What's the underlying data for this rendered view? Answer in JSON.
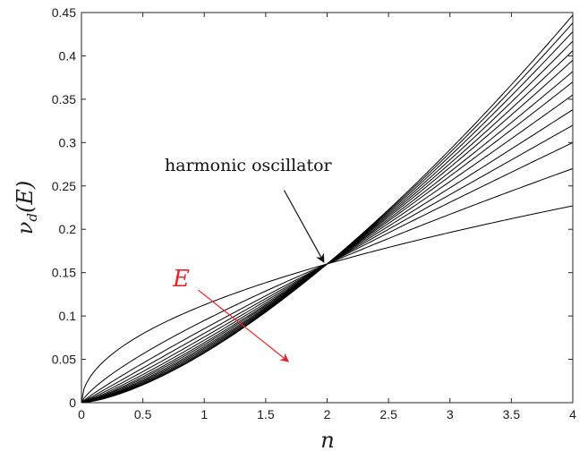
{
  "chart_data": {
    "type": "line",
    "title": "",
    "xlabel": "n",
    "ylabel": "ν_d(E)",
    "ylabel_main": "ν",
    "ylabel_sub": "d",
    "ylabel_tail": "(E)",
    "xlim": [
      0,
      4
    ],
    "ylim": [
      0,
      0.45
    ],
    "x_ticks": [
      "0",
      "0.5",
      "1",
      "1.5",
      "2",
      "2.5",
      "3",
      "3.5",
      "4"
    ],
    "y_ticks": [
      "0",
      "0.05",
      "0.1",
      "0.15",
      "0.2",
      "0.25",
      "0.3",
      "0.35",
      "0.4",
      "0.45"
    ],
    "grid": false,
    "line_color": "#000000",
    "crossing_point": [
      2,
      0.16
    ],
    "curves_right_end_y": [
      0.227,
      0.27,
      0.3,
      0.32,
      0.338,
      0.355,
      0.37,
      0.382,
      0.395,
      0.406,
      0.417,
      0.428,
      0.438,
      0.447
    ],
    "annotations": [
      {
        "text": "harmonic oscillator",
        "color": "#111111",
        "arrow_from": [
          1.65,
          0.245
        ],
        "arrow_to": [
          1.97,
          0.163
        ]
      },
      {
        "text": "E",
        "color": "#e8262b",
        "arrow_from": [
          0.95,
          0.13
        ],
        "arrow_to": [
          1.68,
          0.048
        ]
      }
    ]
  }
}
